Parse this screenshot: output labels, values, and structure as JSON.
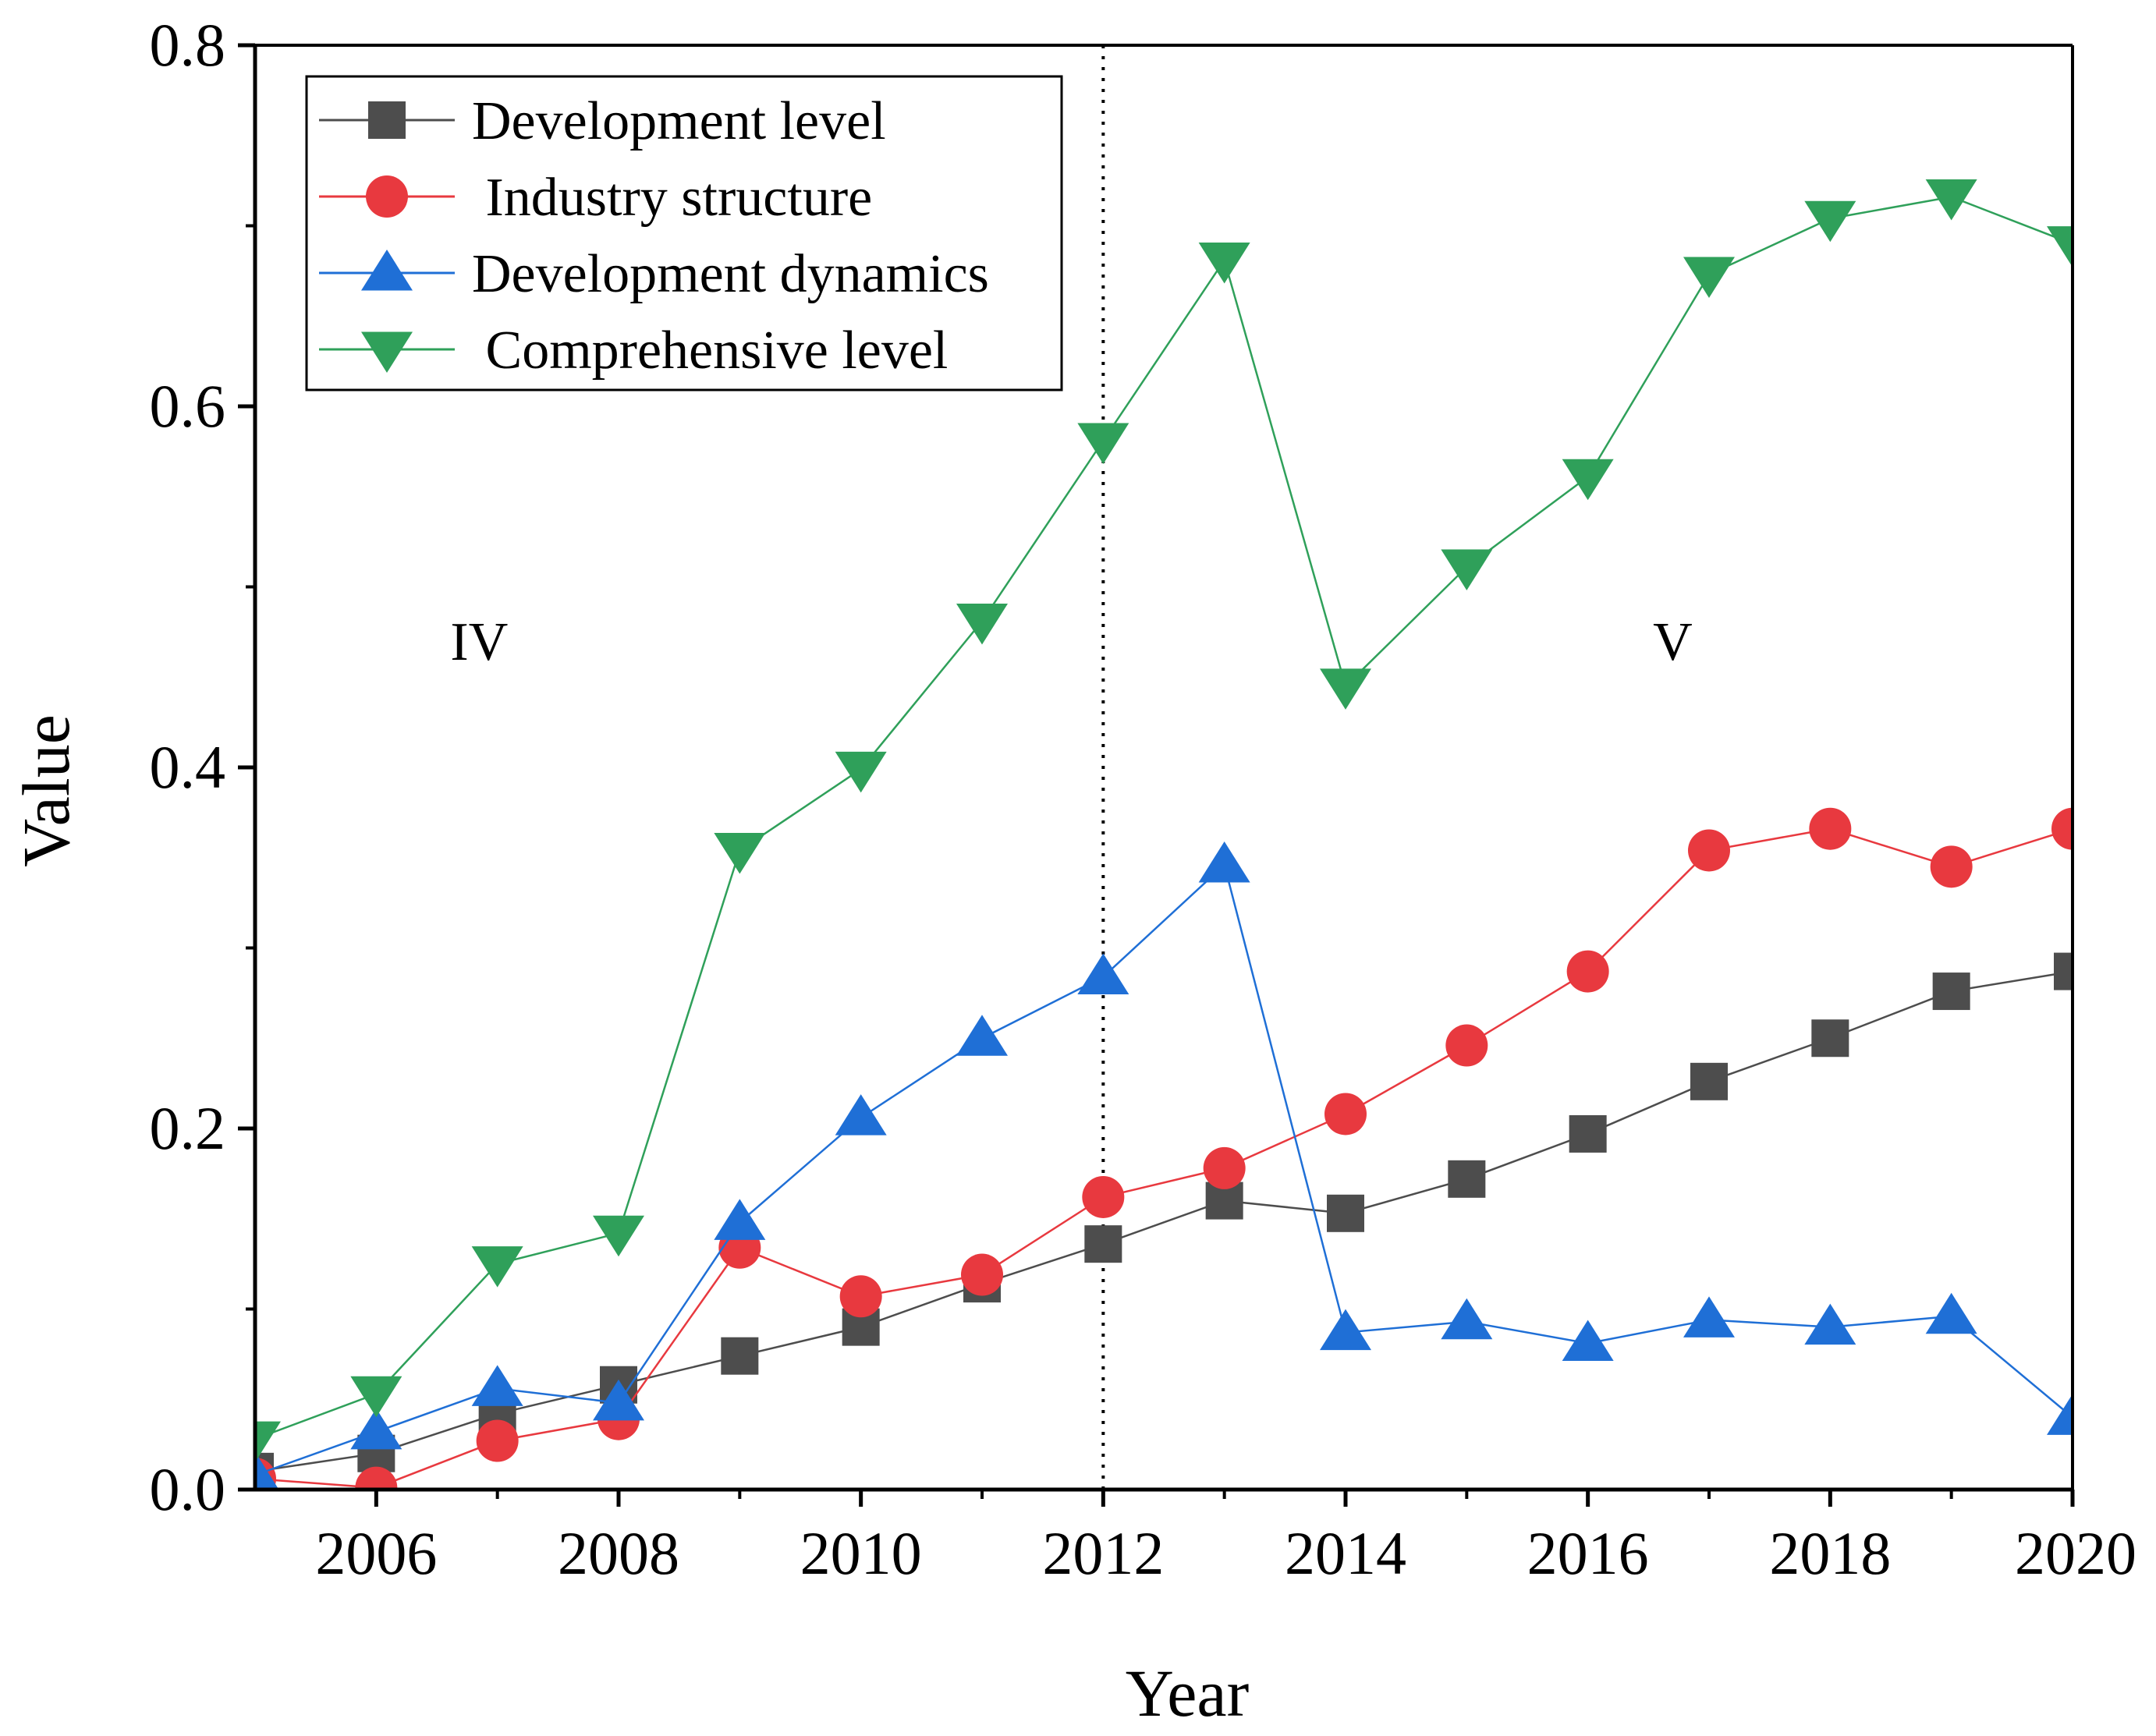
{
  "chart_data": {
    "type": "line",
    "title": "",
    "xlabel": "Year",
    "ylabel": "Value",
    "xlim": [
      2005,
      2020
    ],
    "ylim": [
      0,
      0.8
    ],
    "x_ticks": [
      2006,
      2008,
      2010,
      2012,
      2014,
      2016,
      2018,
      2020
    ],
    "y_ticks": [
      0.0,
      0.2,
      0.4,
      0.6,
      0.8
    ],
    "y_tick_labels": [
      "0.0",
      "0.2",
      "0.4",
      "0.6",
      "0.8"
    ],
    "x_tick_labels": [
      "2006",
      "2008",
      "2010",
      "2012",
      "2014",
      "2016",
      "2018",
      "2020"
    ],
    "legend_position": "top-left",
    "divider": {
      "x": 2012,
      "style": "dotted"
    },
    "annotations": [
      {
        "text": "IV",
        "x": 2006.85,
        "y": 0.47
      },
      {
        "text": "V",
        "x": 2016.7,
        "y": 0.47
      }
    ],
    "x": [
      2005,
      2006,
      2007,
      2008,
      2009,
      2010,
      2011,
      2012,
      2013,
      2014,
      2015,
      2016,
      2017,
      2018,
      2019,
      2020
    ],
    "series": [
      {
        "name": "Development level",
        "color": "#4d4d4d",
        "marker": "square",
        "values": [
          0.01,
          0.02,
          0.042,
          0.058,
          0.074,
          0.09,
          0.114,
          0.136,
          0.16,
          0.153,
          0.172,
          0.197,
          0.226,
          0.25,
          0.276,
          0.287
        ]
      },
      {
        "name": " Industry structure",
        "color": "#e8393f",
        "marker": "circle",
        "values": [
          0.006,
          0.001,
          0.027,
          0.039,
          0.134,
          0.107,
          0.119,
          0.162,
          0.178,
          0.208,
          0.246,
          0.287,
          0.354,
          0.366,
          0.345,
          0.366
        ]
      },
      {
        "name": "Development dynamics",
        "color": "#1f6fd6",
        "marker": "triangle-up",
        "values": [
          0.008,
          0.032,
          0.056,
          0.048,
          0.148,
          0.206,
          0.25,
          0.284,
          0.346,
          0.087,
          0.093,
          0.081,
          0.094,
          0.09,
          0.096,
          0.04
        ]
      },
      {
        "name": " Comprehensive level",
        "color": "#2fa05a",
        "marker": "triangle-down",
        "values": [
          0.028,
          0.053,
          0.125,
          0.142,
          0.354,
          0.399,
          0.481,
          0.581,
          0.681,
          0.445,
          0.511,
          0.561,
          0.673,
          0.704,
          0.716,
          0.69
        ]
      }
    ]
  }
}
